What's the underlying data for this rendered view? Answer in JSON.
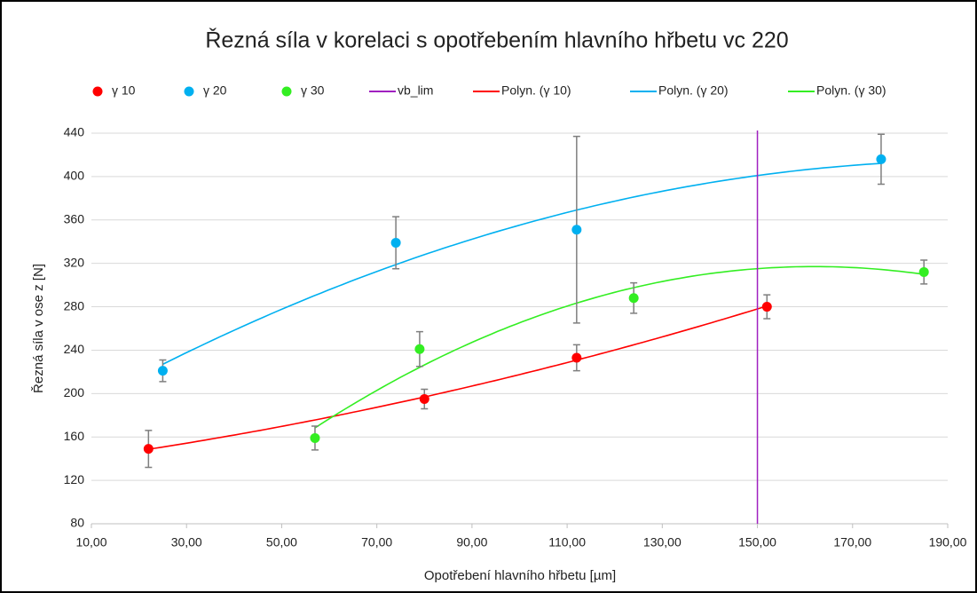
{
  "chart_data": {
    "type": "scatter",
    "title": "Řezná síla v korelaci s opotřebením hlavního hřbetu vc 220",
    "xlabel": "Opotřebení hlavního hřbetu [µm]",
    "ylabel": "Řezná síla v ose z [N]",
    "series": [
      {
        "name": "γ 10",
        "color": "#ff0000",
        "x": [
          22,
          80,
          112,
          152
        ],
        "values": [
          149,
          195,
          233,
          280
        ],
        "errors": [
          17,
          9,
          12,
          11
        ]
      },
      {
        "name": "γ 20",
        "color": "#00b0f0",
        "x": [
          25,
          74,
          112,
          176
        ],
        "values": [
          221,
          339,
          351,
          416
        ],
        "errors": [
          10,
          24,
          86,
          23
        ]
      },
      {
        "name": "γ 30",
        "color": "#33ee22",
        "x": [
          57,
          79,
          124,
          185
        ],
        "values": [
          159,
          241,
          288,
          312
        ],
        "errors": [
          11,
          16,
          14,
          11
        ]
      }
    ],
    "vlines": [
      {
        "name": "vb_lim",
        "x": 150,
        "color": "#a020c0"
      }
    ],
    "trendlines": [
      {
        "name": "Polyn. (γ 10)",
        "series": 0,
        "order": 2,
        "color": "#ff0000"
      },
      {
        "name": "Polyn. (γ 20)",
        "series": 1,
        "order": 2,
        "color": "#00b0f0"
      },
      {
        "name": "Polyn. (γ 30)",
        "series": 2,
        "order": 2,
        "color": "#33ee22"
      }
    ],
    "xlim": [
      10,
      190
    ],
    "xticks": [
      {
        "value": 10,
        "label": "10,00"
      },
      {
        "value": 30,
        "label": "30,00"
      },
      {
        "value": 50,
        "label": "50,00"
      },
      {
        "value": 70,
        "label": "70,00"
      },
      {
        "value": 90,
        "label": "90,00"
      },
      {
        "value": 110,
        "label": "110,00"
      },
      {
        "value": 130,
        "label": "130,00"
      },
      {
        "value": 150,
        "label": "150,00"
      },
      {
        "value": 170,
        "label": "170,00"
      },
      {
        "value": 190,
        "label": "190,00"
      }
    ],
    "ylim": [
      80,
      440
    ],
    "yticks": [
      80,
      120,
      160,
      200,
      240,
      280,
      320,
      360,
      400,
      440
    ],
    "grid": true,
    "legend": "top"
  }
}
